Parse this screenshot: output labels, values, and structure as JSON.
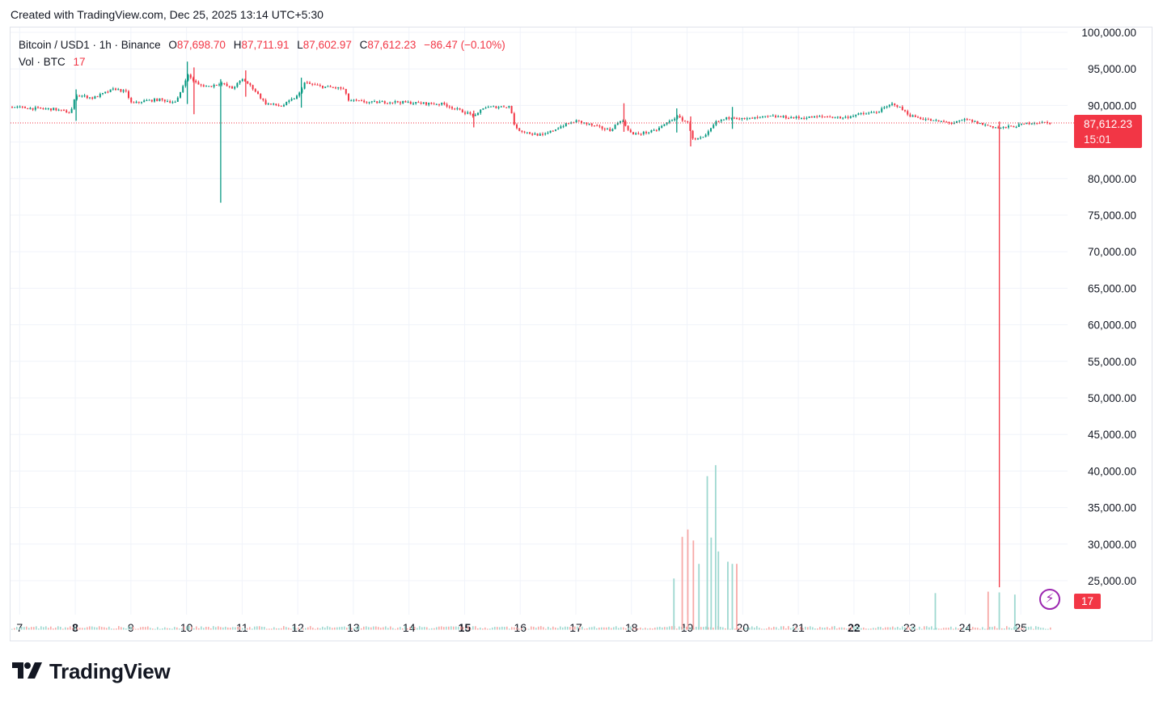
{
  "header": {
    "created_text": "Created with TradingView.com, Dec 25, 2025 13:14 UTC+5:30"
  },
  "legend": {
    "symbol": "Bitcoin / USD1 · 1h · Binance",
    "open_label": "O",
    "open": "87,698.70",
    "high_label": "H",
    "high": "87,711.91",
    "low_label": "L",
    "low": "87,602.97",
    "close_label": "C",
    "close": "87,612.23",
    "change": "−86.47 (−0.10%)",
    "vol_label": "Vol · BTC",
    "vol_value": "17"
  },
  "price_badge": {
    "price": "87,612.23",
    "countdown": "15:01"
  },
  "volume_badge": {
    "value": "17"
  },
  "brand": {
    "name": "TradingView",
    "logo_icon": "tradingview-logo-icon"
  },
  "colors": {
    "up": "#089981",
    "down": "#f23645",
    "grid": "#f0f3fa",
    "text": "#131722",
    "volume_up": "#9ed8d0",
    "volume_down": "#f7a9a7"
  },
  "chart_data": {
    "type": "candlestick",
    "symbol": "Bitcoin / USD1",
    "interval": "1h",
    "exchange": "Binance",
    "ylim": [
      22500,
      100000
    ],
    "y_ticks": [
      25000,
      30000,
      35000,
      40000,
      45000,
      50000,
      55000,
      60000,
      65000,
      70000,
      75000,
      80000,
      85000,
      90000,
      95000,
      100000
    ],
    "y_tick_labels": [
      "25,000.00",
      "30,000.00",
      "35,000.00",
      "40,000.00",
      "45,000.00",
      "50,000.00",
      "55,000.00",
      "60,000.00",
      "65,000.00",
      "70,000.00",
      "75,000.00",
      "80,000.00",
      "85,000.00",
      "90,000.00",
      "95,000.00",
      "100,000.00"
    ],
    "x_tick_labels": [
      {
        "day": 7,
        "label": "7",
        "bold": false
      },
      {
        "day": 8,
        "label": "8",
        "bold": true
      },
      {
        "day": 9,
        "label": "9",
        "bold": false
      },
      {
        "day": 10,
        "label": "10",
        "bold": false
      },
      {
        "day": 11,
        "label": "11",
        "bold": false
      },
      {
        "day": 12,
        "label": "12",
        "bold": false
      },
      {
        "day": 13,
        "label": "13",
        "bold": false
      },
      {
        "day": 14,
        "label": "14",
        "bold": false
      },
      {
        "day": 15,
        "label": "15",
        "bold": true
      },
      {
        "day": 16,
        "label": "16",
        "bold": false
      },
      {
        "day": 17,
        "label": "17",
        "bold": false
      },
      {
        "day": 18,
        "label": "18",
        "bold": false
      },
      {
        "day": 19,
        "label": "19",
        "bold": false
      },
      {
        "day": 20,
        "label": "20",
        "bold": false
      },
      {
        "day": 21,
        "label": "21",
        "bold": false
      },
      {
        "day": 22,
        "label": "22",
        "bold": true
      },
      {
        "day": 23,
        "label": "23",
        "bold": false
      },
      {
        "day": 24,
        "label": "24",
        "bold": false
      },
      {
        "day": 25,
        "label": "25",
        "bold": false
      }
    ],
    "x_start_day": 6.85,
    "x_end_day": 25.55,
    "last_price": 87612.23,
    "price_path": [
      [
        6.85,
        89800
      ],
      [
        7.2,
        89600
      ],
      [
        7.6,
        89500
      ],
      [
        7.9,
        89000
      ],
      [
        8.0,
        91500
      ],
      [
        8.3,
        91000
      ],
      [
        8.7,
        92300
      ],
      [
        8.9,
        91800
      ],
      [
        9.0,
        90200
      ],
      [
        9.2,
        90600
      ],
      [
        9.5,
        90800
      ],
      [
        9.8,
        90400
      ],
      [
        10.0,
        94200
      ],
      [
        10.2,
        92800
      ],
      [
        10.4,
        92600
      ],
      [
        10.6,
        93100
      ],
      [
        10.8,
        92300
      ],
      [
        11.0,
        93600
      ],
      [
        11.2,
        92200
      ],
      [
        11.4,
        90300
      ],
      [
        11.7,
        89900
      ],
      [
        12.0,
        91400
      ],
      [
        12.1,
        93100
      ],
      [
        12.4,
        92600
      ],
      [
        12.8,
        92300
      ],
      [
        12.9,
        90700
      ],
      [
        13.3,
        90400
      ],
      [
        13.7,
        90500
      ],
      [
        14.2,
        90300
      ],
      [
        14.6,
        90200
      ],
      [
        14.9,
        89300
      ],
      [
        15.2,
        88500
      ],
      [
        15.3,
        89700
      ],
      [
        15.8,
        89900
      ],
      [
        15.9,
        86800
      ],
      [
        16.2,
        86100
      ],
      [
        16.4,
        85900
      ],
      [
        16.7,
        87100
      ],
      [
        17.0,
        87900
      ],
      [
        17.3,
        87200
      ],
      [
        17.6,
        86600
      ],
      [
        17.8,
        88100
      ],
      [
        18.0,
        86000
      ],
      [
        18.4,
        86500
      ],
      [
        18.8,
        88500
      ],
      [
        19.0,
        87600
      ],
      [
        19.1,
        85300
      ],
      [
        19.3,
        85600
      ],
      [
        19.5,
        87700
      ],
      [
        19.8,
        88500
      ],
      [
        20.0,
        88100
      ],
      [
        20.5,
        88500
      ],
      [
        21.0,
        88300
      ],
      [
        21.5,
        88500
      ],
      [
        21.8,
        88300
      ],
      [
        22.0,
        88700
      ],
      [
        22.4,
        89100
      ],
      [
        22.7,
        90300
      ],
      [
        23.0,
        88600
      ],
      [
        23.4,
        87900
      ],
      [
        23.8,
        87600
      ],
      [
        24.0,
        88100
      ],
      [
        24.3,
        87400
      ],
      [
        24.6,
        86900
      ],
      [
        24.9,
        87200
      ],
      [
        25.2,
        87700
      ],
      [
        25.55,
        87600
      ]
    ],
    "spikes": [
      {
        "day": 8.0,
        "high": 92200,
        "low": 87900,
        "direction": "up"
      },
      {
        "day": 10.0,
        "high": 96000,
        "low": 90200,
        "direction": "up"
      },
      {
        "day": 10.12,
        "high": 95200,
        "low": 88800,
        "direction": "down"
      },
      {
        "day": 10.6,
        "high": 93600,
        "low": 76700,
        "direction": "up"
      },
      {
        "day": 11.05,
        "high": 94800,
        "low": 91200,
        "direction": "down"
      },
      {
        "day": 12.05,
        "high": 93800,
        "low": 89700,
        "direction": "up"
      },
      {
        "day": 15.15,
        "high": 89300,
        "low": 87000,
        "direction": "down"
      },
      {
        "day": 17.85,
        "high": 90300,
        "low": 86400,
        "direction": "down"
      },
      {
        "day": 18.8,
        "high": 89600,
        "low": 86300,
        "direction": "up"
      },
      {
        "day": 19.05,
        "high": 88500,
        "low": 84400,
        "direction": "down"
      },
      {
        "day": 19.8,
        "high": 89800,
        "low": 86800,
        "direction": "up"
      },
      {
        "day": 24.6,
        "high": 87800,
        "low": 24100,
        "direction": "down"
      }
    ],
    "volume_baseline_price": 22500,
    "volume_spikes": [
      {
        "day": 18.75,
        "value": 25300,
        "direction": "up"
      },
      {
        "day": 18.9,
        "value": 31000,
        "direction": "down"
      },
      {
        "day": 19.0,
        "value": 32000,
        "direction": "down"
      },
      {
        "day": 19.1,
        "value": 30500,
        "direction": "down"
      },
      {
        "day": 19.2,
        "value": 27300,
        "direction": "up"
      },
      {
        "day": 19.35,
        "value": 39300,
        "direction": "up"
      },
      {
        "day": 19.42,
        "value": 30900,
        "direction": "up"
      },
      {
        "day": 19.5,
        "value": 40800,
        "direction": "up"
      },
      {
        "day": 19.55,
        "value": 29000,
        "direction": "up"
      },
      {
        "day": 19.72,
        "value": 27600,
        "direction": "up"
      },
      {
        "day": 19.8,
        "value": 27300,
        "direction": "up"
      },
      {
        "day": 19.88,
        "value": 27300,
        "direction": "down"
      },
      {
        "day": 23.45,
        "value": 23300,
        "direction": "up"
      },
      {
        "day": 24.4,
        "value": 23500,
        "direction": "down"
      },
      {
        "day": 24.6,
        "value": 23400,
        "direction": "up"
      },
      {
        "day": 24.88,
        "value": 23100,
        "direction": "up"
      }
    ]
  }
}
